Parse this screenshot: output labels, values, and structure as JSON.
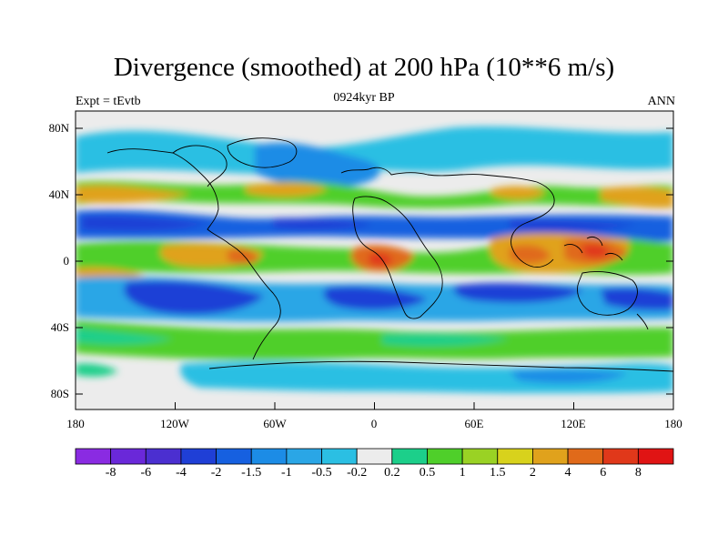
{
  "title": "Divergence (smoothed) at 200 hPa (10**6 m/s)",
  "subtitle_left": "Expt = tEvtb",
  "subtitle_center": "0924kyr BP",
  "subtitle_right": "ANN",
  "y_ticks": [
    "80N",
    "40N",
    "0",
    "40S",
    "80S"
  ],
  "x_ticks": [
    "180",
    "120W",
    "60W",
    "0",
    "60E",
    "120E",
    "180"
  ],
  "colorbar": {
    "labels": [
      "-8",
      "-6",
      "-4",
      "-2",
      "-1.5",
      "-1",
      "-0.5",
      "-0.2",
      "0.2",
      "0.5",
      "1",
      "1.5",
      "2",
      "4",
      "6",
      "8"
    ],
    "colors": [
      "#8a2be2",
      "#6a28d9",
      "#4b2fd0",
      "#1f3fd6",
      "#1660e0",
      "#1c8ce6",
      "#2aa6e6",
      "#2bbfe3",
      "#ececec",
      "#1ccf8a",
      "#4fcf2a",
      "#9ad224",
      "#d8d21c",
      "#e0a21c",
      "#e06a1a",
      "#e0381a",
      "#e01414"
    ]
  },
  "map_data": {
    "type": "filled-contour-map",
    "field": "200 hPa divergence (smoothed)",
    "units": "10**6 m/s",
    "lon_range": [
      -180,
      180
    ],
    "lat_range": [
      -90,
      90
    ]
  }
}
